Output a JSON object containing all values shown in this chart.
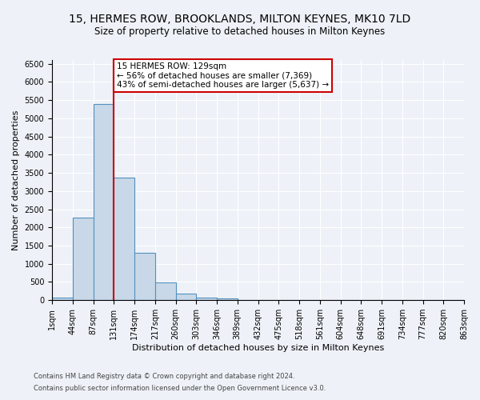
{
  "title": "15, HERMES ROW, BROOKLANDS, MILTON KEYNES, MK10 7LD",
  "subtitle": "Size of property relative to detached houses in Milton Keynes",
  "xlabel": "Distribution of detached houses by size in Milton Keynes",
  "ylabel": "Number of detached properties",
  "footnote1": "Contains HM Land Registry data © Crown copyright and database right 2024.",
  "footnote2": "Contains public sector information licensed under the Open Government Licence v3.0.",
  "bin_labels": [
    "1sqm",
    "44sqm",
    "87sqm",
    "131sqm",
    "174sqm",
    "217sqm",
    "260sqm",
    "303sqm",
    "346sqm",
    "389sqm",
    "432sqm",
    "475sqm",
    "518sqm",
    "561sqm",
    "604sqm",
    "648sqm",
    "691sqm",
    "734sqm",
    "777sqm",
    "820sqm",
    "863sqm"
  ],
  "bar_values": [
    70,
    2280,
    5400,
    3370,
    1310,
    480,
    190,
    80,
    50,
    0,
    0,
    0,
    0,
    0,
    0,
    0,
    0,
    0,
    0,
    0
  ],
  "bar_color": "#c8d8e8",
  "bar_edgecolor": "#5590c0",
  "bar_linewidth": 0.8,
  "property_line_x": 3,
  "property_line_color": "#cc0000",
  "annotation_text": "15 HERMES ROW: 129sqm\n← 56% of detached houses are smaller (7,369)\n43% of semi-detached houses are larger (5,637) →",
  "annotation_box_color": "white",
  "annotation_box_edgecolor": "#cc0000",
  "ylim": [
    0,
    6600
  ],
  "yticks": [
    0,
    500,
    1000,
    1500,
    2000,
    2500,
    3000,
    3500,
    4000,
    4500,
    5000,
    5500,
    6000,
    6500
  ],
  "background_color": "#eef2f8",
  "grid_color": "white",
  "title_fontsize": 10,
  "subtitle_fontsize": 8.5,
  "axis_label_fontsize": 8,
  "tick_fontsize": 7,
  "annotation_fontsize": 7.5,
  "footnote_fontsize": 6
}
